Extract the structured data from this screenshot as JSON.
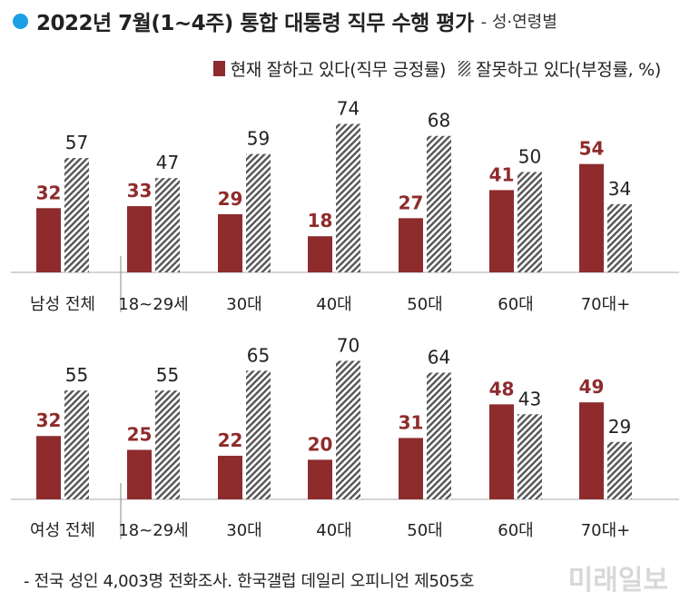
{
  "title": {
    "main": "2022년 7월(1~4주) 통합 대통령 직무 수행 평가",
    "sub": "- 성·연령별"
  },
  "legend": {
    "positive": "현재 잘하고 있다(직무 긍정률)",
    "negative": "잘못하고 있다(부정률, %)"
  },
  "colors": {
    "positive": "#8e2b2d",
    "negative_pattern": "#555555",
    "title_dot": "#1aa0e6"
  },
  "chart_data": [
    {
      "type": "bar",
      "categories": [
        "남성 전체",
        "18~29세",
        "30대",
        "40대",
        "50대",
        "60대",
        "70대+"
      ],
      "series": [
        {
          "name": "현재 잘하고 있다(직무 긍정률)",
          "values": [
            32,
            33,
            29,
            18,
            27,
            41,
            54
          ]
        },
        {
          "name": "잘못하고 있다(부정률, %)",
          "values": [
            57,
            47,
            59,
            74,
            68,
            50,
            34
          ]
        }
      ],
      "ylim": [
        0,
        80
      ]
    },
    {
      "type": "bar",
      "categories": [
        "여성 전체",
        "18~29세",
        "30대",
        "40대",
        "50대",
        "60대",
        "70대+"
      ],
      "series": [
        {
          "name": "현재 잘하고 있다(직무 긍정률)",
          "values": [
            32,
            25,
            22,
            20,
            31,
            48,
            49
          ]
        },
        {
          "name": "잘못하고 있다(부정률, %)",
          "values": [
            55,
            55,
            65,
            70,
            64,
            43,
            29
          ]
        }
      ],
      "ylim": [
        0,
        80
      ]
    }
  ],
  "footer": "- 전국 성인 4,003명 전화조사. 한국갤럽 데일리 오피니언 제505호",
  "watermark": "미래일보"
}
